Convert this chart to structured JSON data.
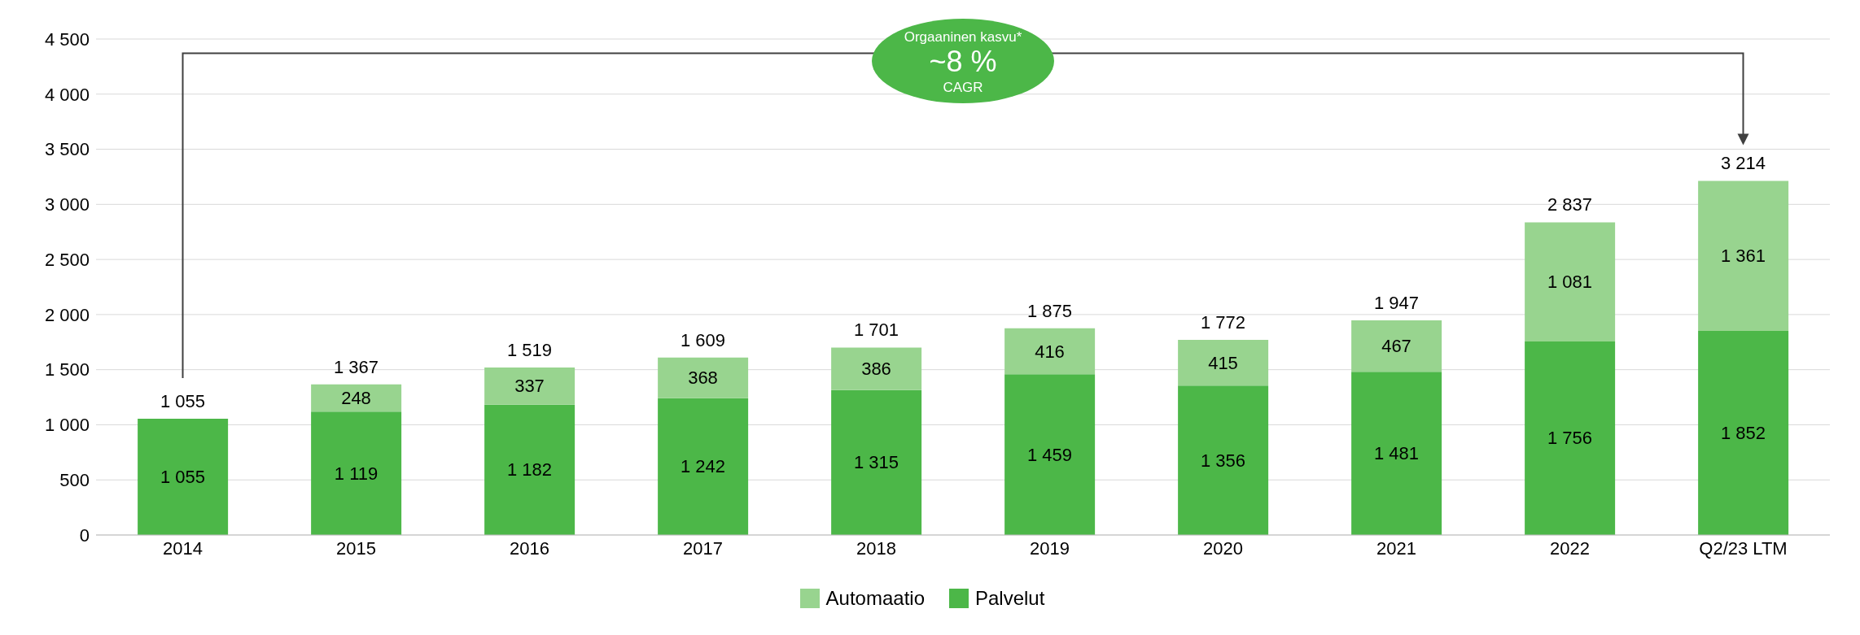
{
  "chart_data": {
    "type": "bar",
    "stacked": true,
    "categories": [
      "2014",
      "2015",
      "2016",
      "2017",
      "2018",
      "2019",
      "2020",
      "2021",
      "2022",
      "Q2/23 LTM"
    ],
    "series": [
      {
        "name": "Palvelut",
        "color": "#4cb748",
        "values": [
          1055,
          1119,
          1182,
          1242,
          1315,
          1459,
          1356,
          1481,
          1756,
          1852
        ],
        "value_labels": [
          "1 055",
          "1 119",
          "1 182",
          "1 242",
          "1 315",
          "1 459",
          "1 356",
          "1 481",
          "1 756",
          "1 852"
        ]
      },
      {
        "name": "Automaatio",
        "color": "#98d48f",
        "values": [
          null,
          248,
          337,
          368,
          386,
          416,
          415,
          467,
          1081,
          1361
        ],
        "value_labels": [
          null,
          "248",
          "337",
          "368",
          "386",
          "416",
          "415",
          "467",
          "1 081",
          "1 361"
        ]
      }
    ],
    "totals": [
      "1 055",
      "1 367",
      "1 519",
      "1 609",
      "1 701",
      "1 875",
      "1 772",
      "1 947",
      "2 837",
      "3 214"
    ],
    "ylim": [
      0,
      4500
    ],
    "yticks": [
      0,
      500,
      {
        "value": 1000,
        "label": "1 000"
      },
      {
        "value": 1500,
        "label": "1 500"
      },
      {
        "value": 2000,
        "label": "2 000"
      },
      {
        "value": 2500,
        "label": "2 500"
      },
      {
        "value": 3000,
        "label": "3 000"
      },
      {
        "value": 3500,
        "label": "3 500"
      },
      {
        "value": 4000,
        "label": "4 000"
      },
      {
        "value": 4500,
        "label": "4 500"
      }
    ],
    "grid": "y",
    "legend": "bottom",
    "annotations": [
      "Orgaaninen kasvu*",
      "~8 %",
      "CAGR"
    ]
  }
}
